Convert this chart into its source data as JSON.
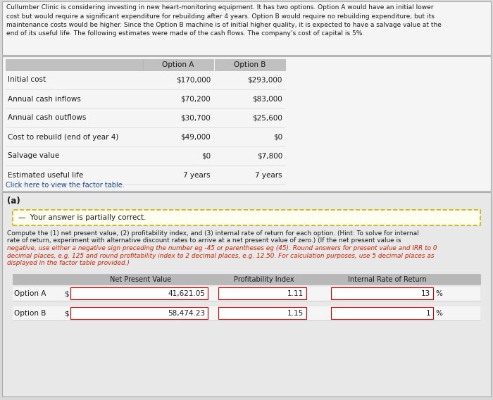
{
  "title_text": "Cullumber Clinic is considering investing in new heart-monitoring equipment. It has two options. Option A would have an initial lower\ncost but would require a significant expenditure for rebuilding after 4 years. Option B would require no rebuilding expenditure, but its\nmaintenance costs would be higher. Since the Option B machine is of initial higher quality, it is expected to have a salvage value at the\nend of its useful life. The following estimates were made of the cash flows. The company’s cost of capital is 5%.",
  "table1_headers": [
    "",
    "Option A",
    "Option B"
  ],
  "table1_rows": [
    [
      "Initial cost",
      "$170,000",
      "$293,000"
    ],
    [
      "Annual cash inflows",
      "$70,200",
      "$83,000"
    ],
    [
      "Annual cash outflows",
      "$30,700",
      "$25,600"
    ],
    [
      "Cost to rebuild (end of year 4)",
      "$49,000",
      "$0"
    ],
    [
      "Salvage value",
      "$0",
      "$7,800"
    ],
    [
      "Estimated useful life",
      "7 years",
      "7 years"
    ]
  ],
  "click_text": "Click here to view the factor table.",
  "section_a_label": "(a)",
  "warning_text": "—  Your answer is partially correct.",
  "instr_line1": "Compute the (1) net present value, (2) profitability index, and (3) internal rate of return for each option. (Hint: To solve for internal",
  "instr_line2": "rate of return, experiment with alternative discount rates to arrive at a net present value of zero.) (If the net present value is",
  "instr_line3": "negative, use either a negative sign preceding the number eg -45 or parentheses eg (45). Round answers for present value and IRR to 0",
  "instr_line4": "decimal places, e.g. 125 and round profitability index to 2 decimal places, e.g. 12.50. For calculation purposes, use 5 decimal places as",
  "instr_line5": "displayed in the factor table provided.)",
  "option_a_label": "Option A",
  "option_b_label": "Option B",
  "dollar_sign": "$",
  "npv_a": "41,621.05",
  "npv_b": "58,474.23",
  "pi_a": "1.11",
  "pi_b": "1.15",
  "irr_a": "13",
  "irr_b": "1",
  "pct_sign": "%",
  "page_bg": "#d8d8d8",
  "top_box_bg": "#f5f5f5",
  "mid_box_bg": "#f0f0f0",
  "sec_a_bg": "#e8e8e8",
  "white": "#ffffff",
  "table_hdr_bg": "#c0c0c0",
  "res_hdr_bg": "#b8b8b8",
  "border_col": "#aaaaaa",
  "warn_border": "#c8b400",
  "warn_bg": "#fefef0",
  "input_border": "#cc0000",
  "input_bg": "#ffffff",
  "red_color": "#cc2200",
  "dark_text": "#1a1a1a",
  "link_color": "#1a4a8a"
}
